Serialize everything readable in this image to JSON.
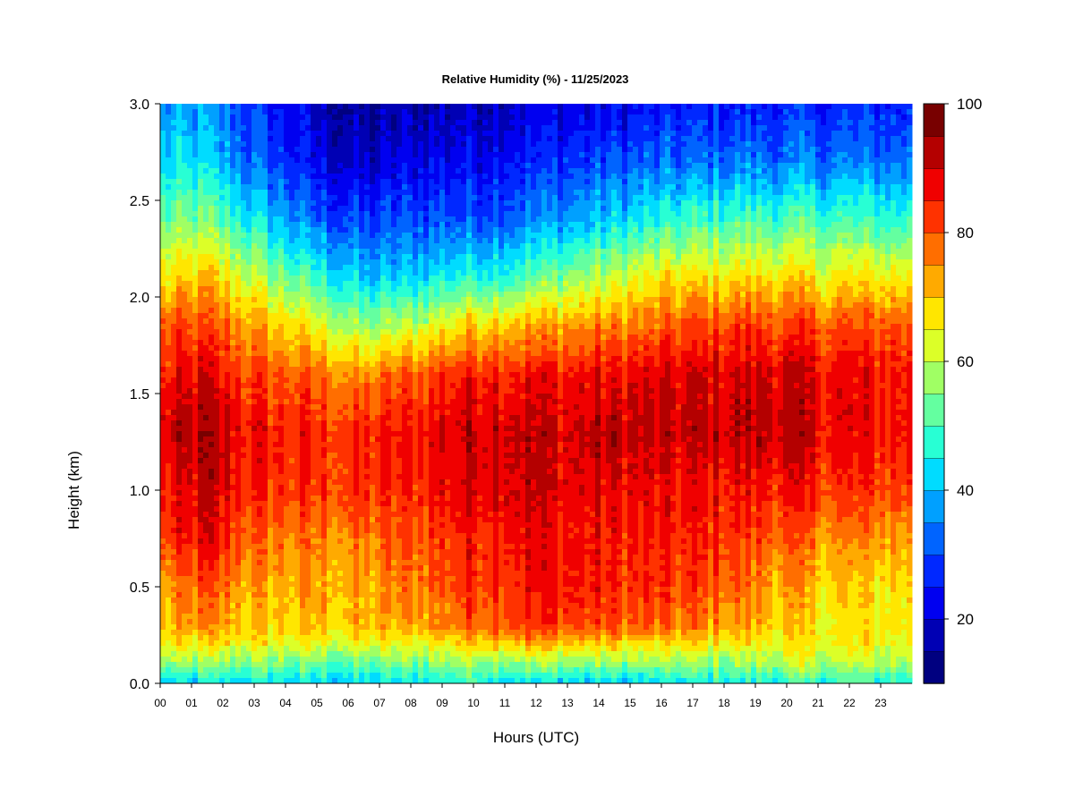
{
  "chart_data": {
    "type": "heatmap",
    "title": "Relative Humidity (%) - 11/25/2023",
    "xlabel": "Hours (UTC)",
    "ylabel": "Height (km)",
    "x_ticks": [
      "00",
      "01",
      "02",
      "03",
      "04",
      "05",
      "06",
      "07",
      "08",
      "09",
      "10",
      "11",
      "12",
      "13",
      "14",
      "15",
      "16",
      "17",
      "18",
      "19",
      "20",
      "21",
      "22",
      "23"
    ],
    "y_ticks": [
      "0.0",
      "0.5",
      "1.0",
      "1.5",
      "2.0",
      "2.5",
      "3.0"
    ],
    "xlim": [
      0,
      24
    ],
    "ylim": [
      0,
      3
    ],
    "colorbar": {
      "min": 10,
      "max": 100,
      "step": 5,
      "ticks": [
        "20",
        "40",
        "60",
        "80",
        "100"
      ],
      "colors": [
        "#000080",
        "#0000B4",
        "#0000F0",
        "#0028FF",
        "#0064FF",
        "#00A0FF",
        "#00DCFF",
        "#28FFD4",
        "#64FFA0",
        "#A0FF64",
        "#DCFF28",
        "#FFE600",
        "#FFAA00",
        "#FF6E00",
        "#FF3200",
        "#F00000",
        "#B40000",
        "#780000"
      ]
    },
    "x_hours": [
      0,
      1.5,
      3,
      5,
      6.5,
      8,
      10,
      11.5,
      13,
      14.5,
      16,
      18,
      19.5,
      21,
      23,
      24
    ],
    "heights_km": [
      0,
      0.1,
      0.2,
      0.3,
      0.5,
      0.75,
      1.0,
      1.3,
      1.6,
      1.85,
      2.1,
      2.4,
      2.7,
      3.0
    ],
    "rh_percent": [
      [
        40,
        42,
        44,
        42,
        42,
        44,
        48,
        44,
        42,
        40,
        42,
        46,
        46,
        48,
        46,
        46
      ],
      [
        55,
        55,
        55,
        52,
        52,
        54,
        58,
        56,
        56,
        56,
        56,
        56,
        58,
        60,
        58,
        58
      ],
      [
        65,
        66,
        65,
        64,
        64,
        64,
        70,
        72,
        70,
        68,
        66,
        66,
        64,
        66,
        65,
        65
      ],
      [
        70,
        74,
        70,
        70,
        70,
        72,
        80,
        84,
        82,
        80,
        78,
        74,
        70,
        66,
        66,
        66
      ],
      [
        72,
        80,
        72,
        72,
        72,
        76,
        84,
        86,
        86,
        84,
        82,
        80,
        74,
        70,
        68,
        68
      ],
      [
        80,
        88,
        78,
        76,
        76,
        80,
        86,
        88,
        86,
        85,
        84,
        84,
        80,
        76,
        74,
        74
      ],
      [
        84,
        90,
        84,
        82,
        82,
        84,
        90,
        92,
        88,
        88,
        86,
        86,
        86,
        84,
        82,
        82
      ],
      [
        88,
        93,
        86,
        84,
        84,
        86,
        92,
        92,
        90,
        92,
        90,
        91,
        93,
        88,
        86,
        86
      ],
      [
        84,
        88,
        80,
        78,
        74,
        80,
        86,
        86,
        86,
        86,
        88,
        90,
        90,
        88,
        86,
        86
      ],
      [
        78,
        80,
        74,
        64,
        56,
        60,
        70,
        72,
        74,
        76,
        78,
        82,
        82,
        80,
        80,
        80
      ],
      [
        66,
        70,
        60,
        48,
        40,
        42,
        48,
        50,
        56,
        60,
        66,
        68,
        68,
        66,
        66,
        66
      ],
      [
        52,
        54,
        44,
        32,
        28,
        30,
        32,
        34,
        38,
        42,
        46,
        50,
        50,
        50,
        48,
        48
      ],
      [
        42,
        42,
        32,
        22,
        18,
        22,
        24,
        26,
        28,
        30,
        32,
        34,
        34,
        34,
        34,
        34
      ],
      [
        36,
        36,
        28,
        18,
        14,
        16,
        18,
        20,
        22,
        22,
        24,
        26,
        26,
        26,
        26,
        26
      ]
    ]
  }
}
